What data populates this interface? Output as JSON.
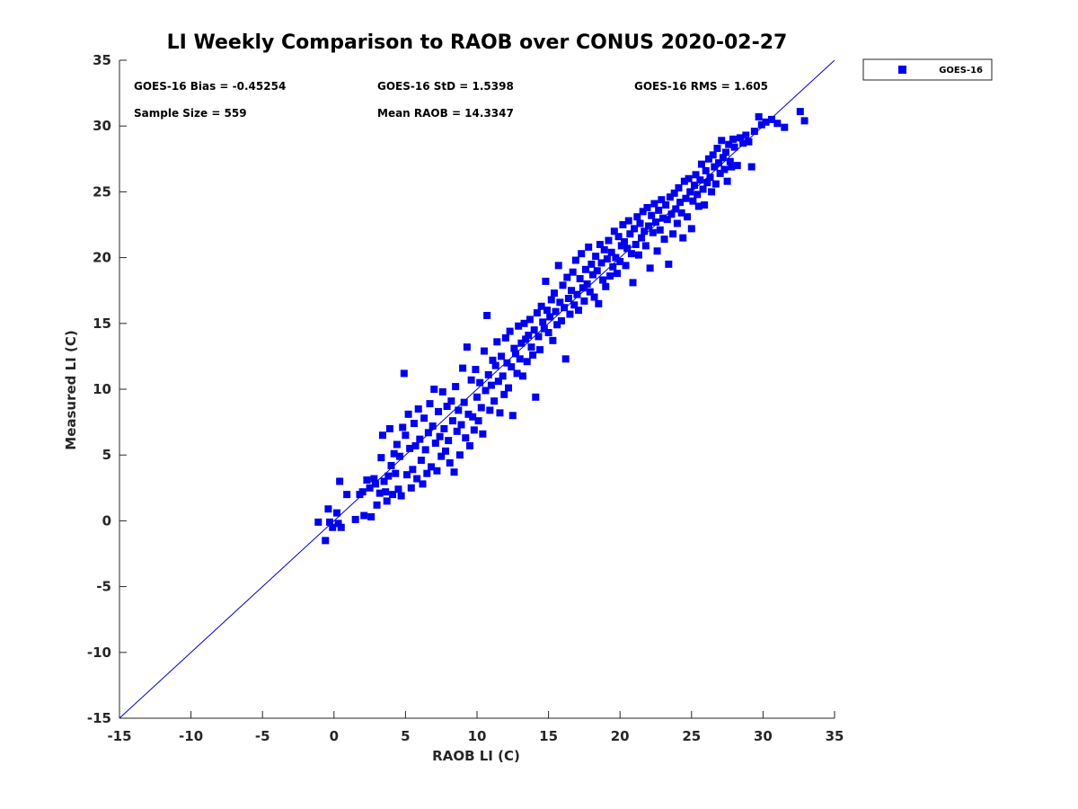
{
  "chart_data": {
    "type": "scatter",
    "title": "LI Weekly Comparison to RAOB over CONUS 2020-02-27",
    "xlabel": "RAOB LI (C)",
    "ylabel": "Measured LI (C)",
    "xlim": [
      -15,
      35
    ],
    "ylim": [
      -15,
      35
    ],
    "xticks": [
      -15,
      -10,
      -5,
      0,
      5,
      10,
      15,
      20,
      25,
      30,
      35
    ],
    "yticks": [
      -15,
      -10,
      -5,
      0,
      5,
      10,
      15,
      20,
      25,
      30,
      35
    ],
    "grid": false,
    "legend_position": "outside-top-right",
    "reference_line": {
      "type": "1:1",
      "color": "#0000cc"
    },
    "annotations": [
      "GOES-16 Bias = -0.45254",
      "GOES-16 StD = 1.5398",
      "GOES-16 RMS = 1.605",
      "Sample Size = 559",
      "Mean RAOB = 14.3347"
    ],
    "series": [
      {
        "name": "GOES-16",
        "color": "#0000ee",
        "marker": "square",
        "points": [
          [
            -1.1,
            -0.1
          ],
          [
            -0.6,
            -1.5
          ],
          [
            -0.4,
            0.9
          ],
          [
            -0.3,
            -0.1
          ],
          [
            -0.1,
            -0.5
          ],
          [
            0.2,
            0.6
          ],
          [
            0.3,
            -0.2
          ],
          [
            0.4,
            3.0
          ],
          [
            0.5,
            -0.5
          ],
          [
            0.9,
            2.0
          ],
          [
            1.5,
            0.1
          ],
          [
            1.8,
            2.0
          ],
          [
            2.0,
            2.2
          ],
          [
            2.1,
            0.4
          ],
          [
            2.3,
            3.1
          ],
          [
            2.5,
            2.5
          ],
          [
            2.6,
            0.3
          ],
          [
            2.8,
            3.2
          ],
          [
            2.9,
            2.8
          ],
          [
            3.0,
            1.2
          ],
          [
            3.2,
            2.1
          ],
          [
            3.3,
            4.8
          ],
          [
            3.4,
            6.5
          ],
          [
            3.5,
            3.0
          ],
          [
            3.6,
            2.2
          ],
          [
            3.7,
            1.5
          ],
          [
            3.8,
            3.4
          ],
          [
            3.9,
            7.0
          ],
          [
            4.0,
            4.2
          ],
          [
            4.1,
            2.0
          ],
          [
            4.2,
            5.1
          ],
          [
            4.3,
            3.6
          ],
          [
            4.4,
            5.8
          ],
          [
            4.5,
            2.4
          ],
          [
            4.6,
            4.9
          ],
          [
            4.7,
            1.9
          ],
          [
            4.8,
            7.1
          ],
          [
            4.9,
            11.2
          ],
          [
            5.0,
            6.5
          ],
          [
            5.1,
            3.5
          ],
          [
            5.2,
            8.1
          ],
          [
            5.3,
            5.5
          ],
          [
            5.4,
            2.5
          ],
          [
            5.5,
            3.9
          ],
          [
            5.6,
            7.4
          ],
          [
            5.7,
            5.7
          ],
          [
            5.8,
            3.2
          ],
          [
            5.9,
            8.5
          ],
          [
            6.0,
            6.2
          ],
          [
            6.1,
            4.6
          ],
          [
            6.2,
            2.8
          ],
          [
            6.3,
            7.8
          ],
          [
            6.4,
            5.4
          ],
          [
            6.5,
            3.6
          ],
          [
            6.6,
            6.7
          ],
          [
            6.7,
            8.9
          ],
          [
            6.8,
            4.1
          ],
          [
            6.9,
            7.2
          ],
          [
            7.0,
            10.0
          ],
          [
            7.1,
            5.9
          ],
          [
            7.2,
            3.8
          ],
          [
            7.3,
            8.3
          ],
          [
            7.4,
            6.4
          ],
          [
            7.5,
            4.9
          ],
          [
            7.6,
            9.8
          ],
          [
            7.7,
            7.0
          ],
          [
            7.8,
            5.3
          ],
          [
            7.9,
            8.7
          ],
          [
            8.0,
            6.1
          ],
          [
            8.1,
            4.4
          ],
          [
            8.2,
            9.1
          ],
          [
            8.3,
            7.6
          ],
          [
            8.4,
            3.7
          ],
          [
            8.5,
            10.2
          ],
          [
            8.6,
            6.8
          ],
          [
            8.7,
            8.4
          ],
          [
            8.8,
            5.0
          ],
          [
            8.9,
            7.3
          ],
          [
            9.0,
            11.6
          ],
          [
            9.1,
            9.0
          ],
          [
            9.2,
            6.3
          ],
          [
            9.3,
            13.2
          ],
          [
            9.4,
            8.1
          ],
          [
            9.5,
            5.7
          ],
          [
            9.6,
            10.7
          ],
          [
            9.7,
            7.9
          ],
          [
            9.8,
            6.9
          ],
          [
            9.9,
            11.5
          ],
          [
            10.0,
            9.4
          ],
          [
            10.1,
            7.6
          ],
          [
            10.2,
            10.5
          ],
          [
            10.3,
            8.6
          ],
          [
            10.4,
            6.6
          ],
          [
            10.5,
            12.9
          ],
          [
            10.6,
            9.9
          ],
          [
            10.7,
            15.6
          ],
          [
            10.8,
            11.1
          ],
          [
            10.9,
            8.4
          ],
          [
            11.0,
            10.3
          ],
          [
            11.1,
            12.2
          ],
          [
            11.2,
            9.1
          ],
          [
            11.3,
            11.8
          ],
          [
            11.4,
            13.6
          ],
          [
            11.5,
            10.6
          ],
          [
            11.6,
            8.2
          ],
          [
            11.7,
            12.5
          ],
          [
            11.8,
            11.0
          ],
          [
            11.9,
            9.6
          ],
          [
            12.0,
            13.9
          ],
          [
            12.1,
            12.0
          ],
          [
            12.2,
            10.1
          ],
          [
            12.3,
            14.4
          ],
          [
            12.4,
            11.7
          ],
          [
            12.5,
            8.0
          ],
          [
            12.6,
            13.1
          ],
          [
            12.7,
            12.7
          ],
          [
            12.8,
            11.2
          ],
          [
            12.9,
            14.8
          ],
          [
            13.0,
            12.3
          ],
          [
            13.1,
            13.5
          ],
          [
            13.2,
            11.0
          ],
          [
            13.3,
            15.0
          ],
          [
            13.4,
            13.8
          ],
          [
            13.5,
            12.1
          ],
          [
            13.6,
            14.1
          ],
          [
            13.7,
            15.3
          ],
          [
            13.8,
            13.2
          ],
          [
            13.9,
            12.6
          ],
          [
            14.0,
            14.5
          ],
          [
            14.1,
            9.4
          ],
          [
            14.2,
            15.8
          ],
          [
            14.3,
            14.0
          ],
          [
            14.4,
            13.0
          ],
          [
            14.5,
            16.3
          ],
          [
            14.6,
            15.1
          ],
          [
            14.7,
            14.6
          ],
          [
            14.8,
            18.2
          ],
          [
            14.9,
            16.0
          ],
          [
            15.0,
            14.3
          ],
          [
            15.1,
            15.5
          ],
          [
            15.2,
            16.8
          ],
          [
            15.3,
            13.7
          ],
          [
            15.4,
            17.3
          ],
          [
            15.5,
            15.9
          ],
          [
            15.6,
            14.9
          ],
          [
            15.7,
            19.4
          ],
          [
            15.8,
            16.6
          ],
          [
            15.9,
            15.2
          ],
          [
            16.0,
            17.9
          ],
          [
            16.1,
            16.2
          ],
          [
            16.2,
            12.3
          ],
          [
            16.3,
            18.5
          ],
          [
            16.4,
            16.9
          ],
          [
            16.5,
            15.7
          ],
          [
            16.6,
            17.5
          ],
          [
            16.7,
            18.9
          ],
          [
            16.8,
            16.4
          ],
          [
            16.9,
            19.8
          ],
          [
            17.0,
            17.2
          ],
          [
            17.1,
            16.0
          ],
          [
            17.2,
            18.4
          ],
          [
            17.3,
            20.3
          ],
          [
            17.4,
            17.7
          ],
          [
            17.5,
            16.7
          ],
          [
            17.6,
            19.1
          ],
          [
            17.7,
            18.0
          ],
          [
            17.8,
            20.8
          ],
          [
            17.9,
            17.4
          ],
          [
            18.0,
            19.5
          ],
          [
            18.1,
            18.7
          ],
          [
            18.2,
            17.0
          ],
          [
            18.3,
            20.1
          ],
          [
            18.4,
            19.0
          ],
          [
            18.5,
            16.5
          ],
          [
            18.6,
            21.0
          ],
          [
            18.7,
            19.6
          ],
          [
            18.8,
            18.3
          ],
          [
            18.9,
            20.6
          ],
          [
            19.0,
            17.8
          ],
          [
            19.1,
            19.9
          ],
          [
            19.2,
            21.3
          ],
          [
            19.3,
            18.6
          ],
          [
            19.4,
            20.4
          ],
          [
            19.5,
            19.3
          ],
          [
            19.6,
            22.0
          ],
          [
            19.7,
            20.0
          ],
          [
            19.8,
            18.8
          ],
          [
            19.9,
            21.6
          ],
          [
            20.0,
            19.7
          ],
          [
            20.1,
            20.9
          ],
          [
            20.2,
            22.5
          ],
          [
            20.3,
            21.2
          ],
          [
            20.4,
            19.4
          ],
          [
            20.5,
            20.7
          ],
          [
            20.6,
            22.8
          ],
          [
            20.7,
            21.8
          ],
          [
            20.8,
            20.3
          ],
          [
            20.9,
            18.1
          ],
          [
            21.0,
            22.2
          ],
          [
            21.1,
            21.0
          ],
          [
            21.2,
            23.1
          ],
          [
            21.3,
            20.2
          ],
          [
            21.4,
            22.6
          ],
          [
            21.5,
            21.5
          ],
          [
            21.6,
            23.5
          ],
          [
            21.7,
            22.0
          ],
          [
            21.8,
            20.9
          ],
          [
            21.9,
            23.8
          ],
          [
            22.0,
            22.4
          ],
          [
            22.1,
            19.2
          ],
          [
            22.2,
            23.2
          ],
          [
            22.3,
            21.9
          ],
          [
            22.4,
            24.1
          ],
          [
            22.5,
            22.7
          ],
          [
            22.6,
            20.5
          ],
          [
            22.7,
            23.6
          ],
          [
            22.8,
            22.1
          ],
          [
            22.9,
            24.4
          ],
          [
            23.0,
            23.0
          ],
          [
            23.1,
            21.4
          ],
          [
            23.2,
            24.0
          ],
          [
            23.3,
            22.9
          ],
          [
            23.4,
            19.5
          ],
          [
            23.5,
            24.6
          ],
          [
            23.6,
            23.3
          ],
          [
            23.7,
            21.8
          ],
          [
            23.8,
            24.9
          ],
          [
            23.9,
            23.7
          ],
          [
            24.0,
            22.6
          ],
          [
            24.1,
            25.3
          ],
          [
            24.2,
            24.2
          ],
          [
            24.3,
            23.4
          ],
          [
            24.4,
            21.5
          ],
          [
            24.5,
            25.8
          ],
          [
            24.6,
            24.5
          ],
          [
            24.7,
            23.1
          ],
          [
            24.8,
            26.0
          ],
          [
            24.9,
            25.0
          ],
          [
            25.0,
            22.2
          ],
          [
            25.1,
            24.3
          ],
          [
            25.2,
            25.5
          ],
          [
            25.3,
            26.3
          ],
          [
            25.4,
            24.8
          ],
          [
            25.5,
            23.9
          ],
          [
            25.6,
            25.9
          ],
          [
            25.7,
            27.1
          ],
          [
            25.8,
            25.2
          ],
          [
            25.9,
            24.0
          ],
          [
            26.0,
            26.6
          ],
          [
            26.1,
            25.7
          ],
          [
            26.2,
            27.5
          ],
          [
            26.3,
            26.1
          ],
          [
            26.4,
            25.0
          ],
          [
            26.5,
            27.8
          ],
          [
            26.6,
            26.9
          ],
          [
            26.7,
            25.6
          ],
          [
            26.8,
            28.3
          ],
          [
            26.9,
            27.2
          ],
          [
            27.0,
            26.4
          ],
          [
            27.1,
            28.9
          ],
          [
            27.2,
            27.6
          ],
          [
            27.3,
            26.7
          ],
          [
            27.4,
            28.0
          ],
          [
            27.5,
            25.8
          ],
          [
            27.6,
            28.6
          ],
          [
            27.7,
            27.3
          ],
          [
            27.8,
            26.9
          ],
          [
            27.9,
            29.0
          ],
          [
            28.0,
            28.4
          ],
          [
            28.2,
            27.0
          ],
          [
            28.4,
            29.1
          ],
          [
            28.6,
            28.7
          ],
          [
            28.8,
            29.3
          ],
          [
            29.0,
            28.8
          ],
          [
            29.2,
            26.9
          ],
          [
            29.4,
            29.6
          ],
          [
            29.7,
            30.7
          ],
          [
            29.9,
            30.1
          ],
          [
            30.2,
            30.3
          ],
          [
            30.6,
            30.5
          ],
          [
            31.0,
            30.2
          ],
          [
            31.5,
            29.9
          ],
          [
            32.6,
            31.1
          ],
          [
            32.9,
            30.4
          ]
        ]
      }
    ]
  }
}
